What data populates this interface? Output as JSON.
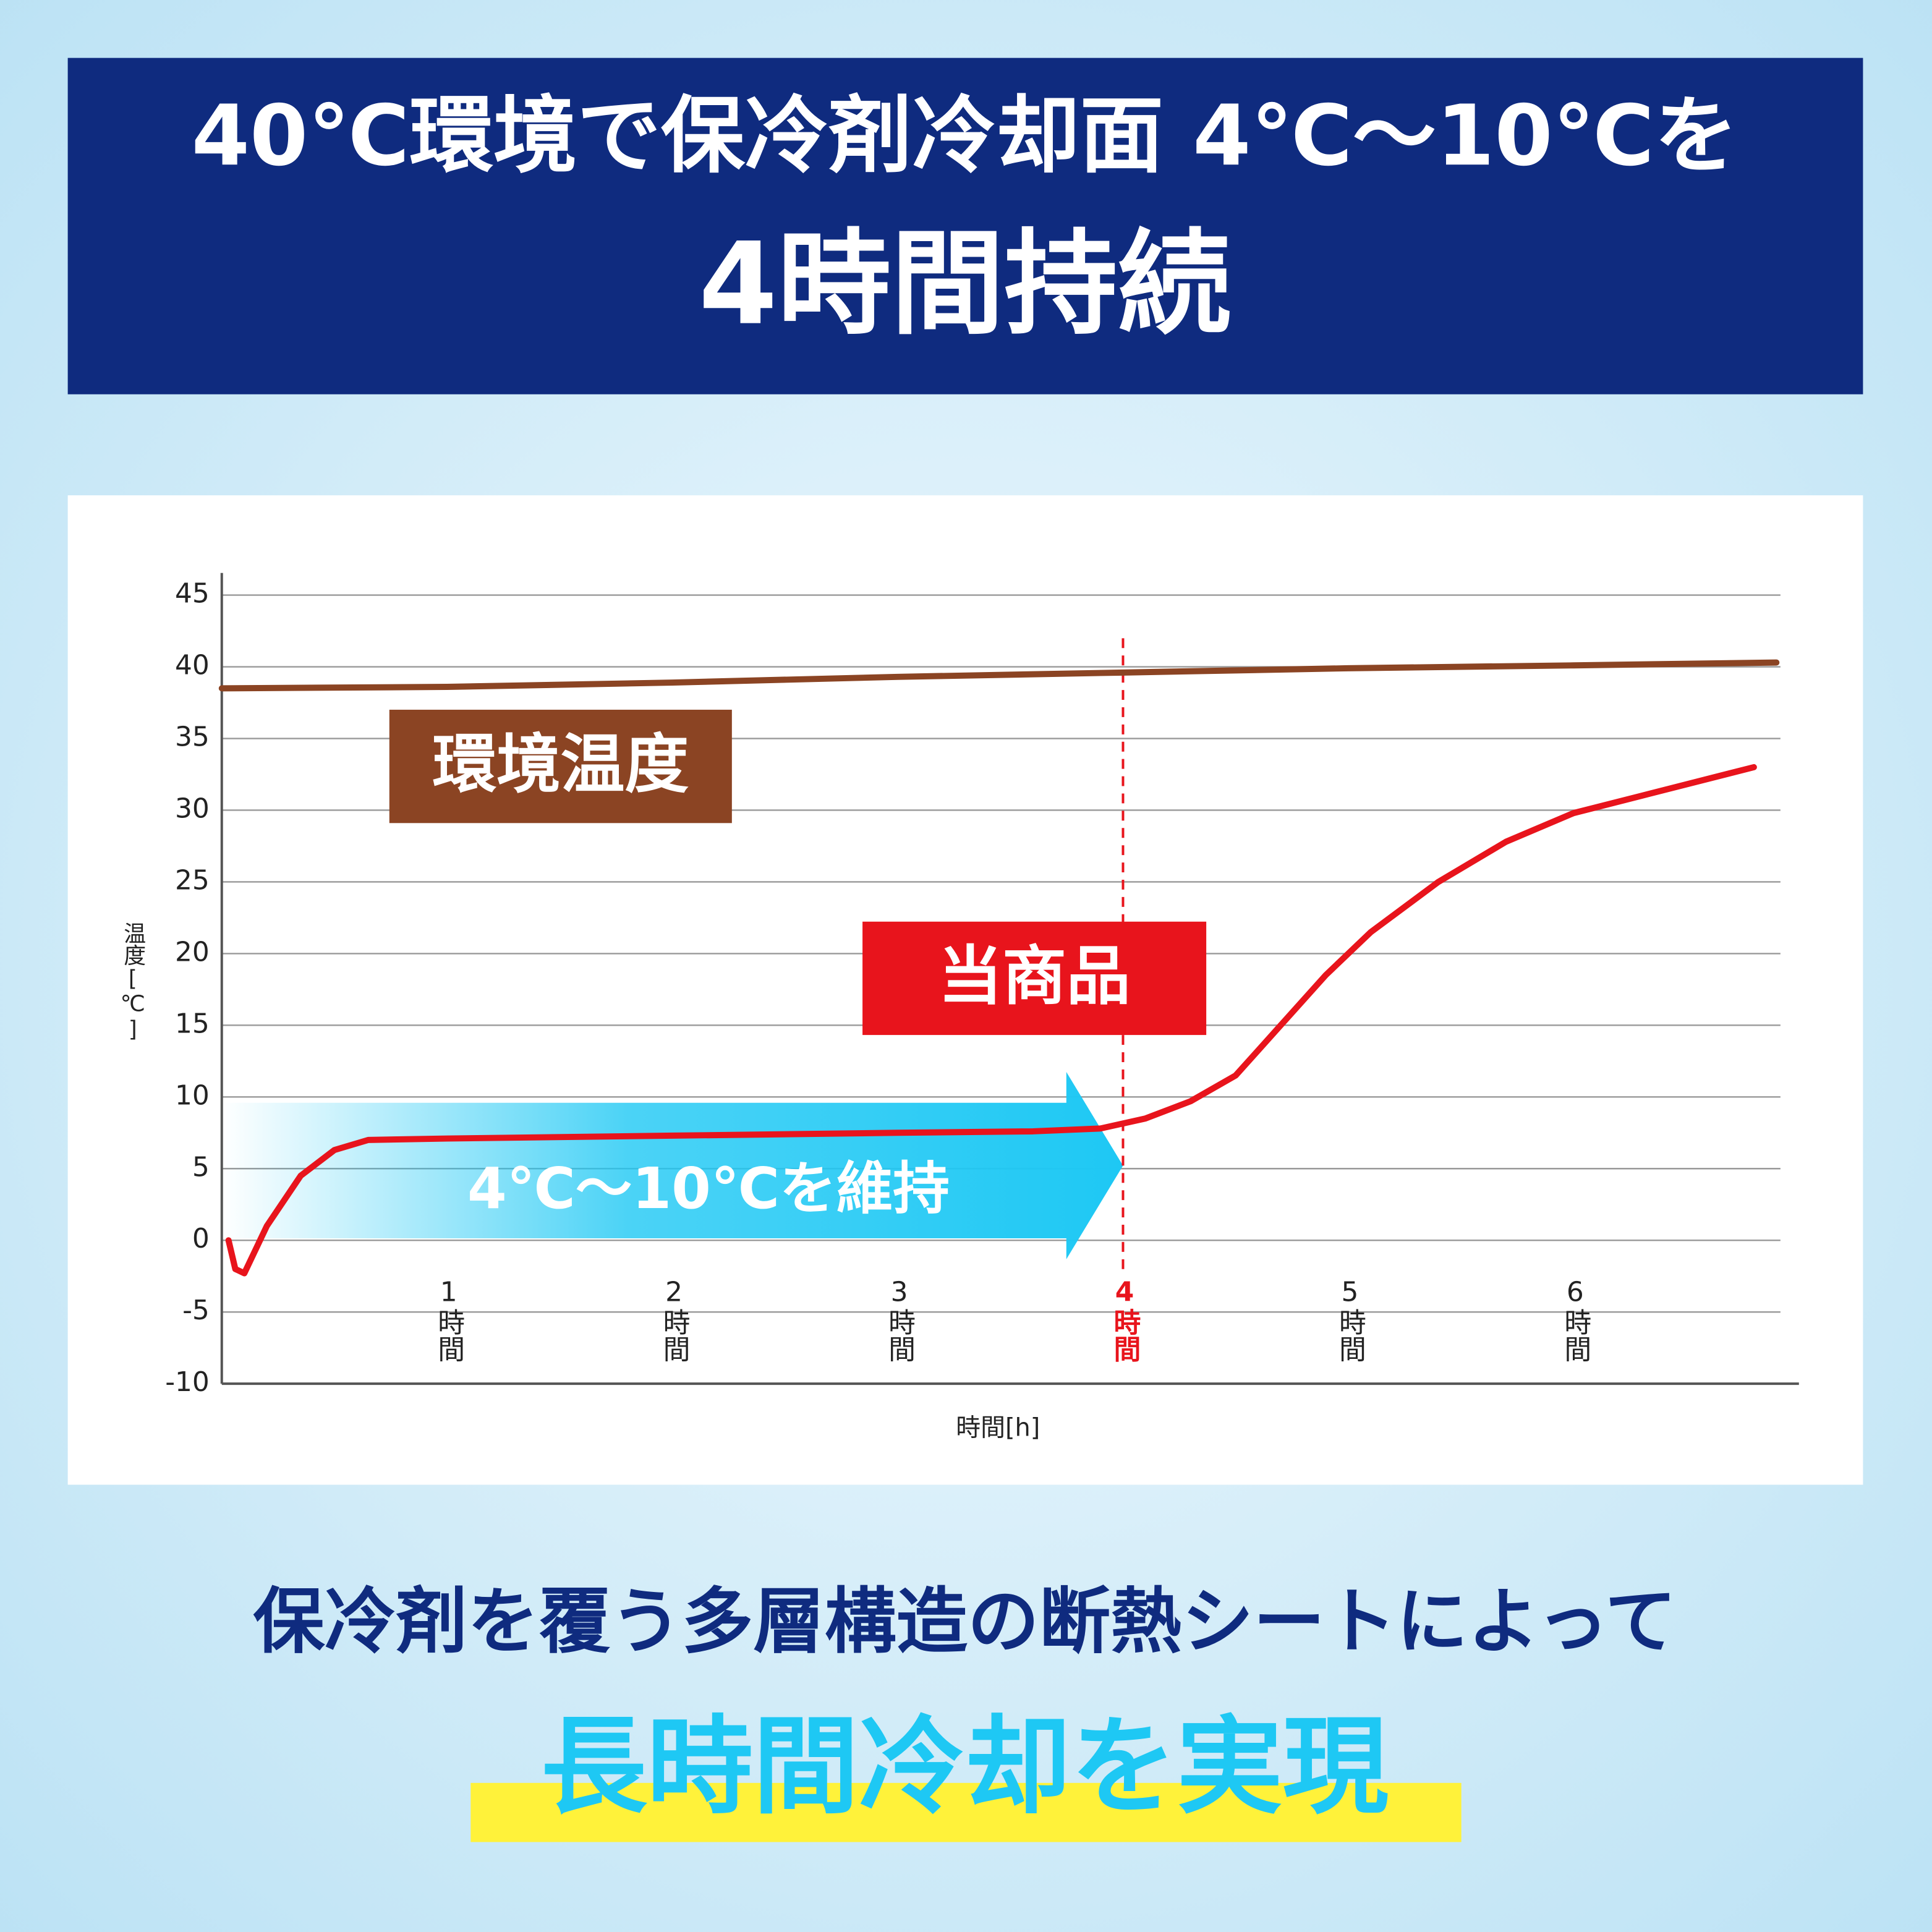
{
  "header": {
    "line1": "40℃環境で保冷剤冷却面 4℃～10℃を",
    "line2": "4時間持続"
  },
  "chart_data": {
    "type": "line",
    "y_label": "温度[℃]",
    "x_label": "時間[h]",
    "xlim": [
      0,
      7
    ],
    "ylim": [
      -10,
      45
    ],
    "yticks": [
      -10,
      -5,
      0,
      5,
      10,
      15,
      20,
      25,
      30,
      35,
      40,
      45
    ],
    "xticks": [
      {
        "value": 1,
        "label": "1時間"
      },
      {
        "value": 2,
        "label": "2時間"
      },
      {
        "value": 3,
        "label": "3時間"
      },
      {
        "value": 4,
        "label": "4時間"
      },
      {
        "value": 5,
        "label": "5時間"
      },
      {
        "value": 6,
        "label": "6時間"
      }
    ],
    "grid": true,
    "highlight_x": 4,
    "highlight_color": "#e8141c",
    "series": [
      {
        "name": "環境温度",
        "color": "#8b4423",
        "x": [
          0,
          1,
          2,
          3,
          4,
          5,
          6,
          6.9
        ],
        "values": [
          38.5,
          38.6,
          38.9,
          39.3,
          39.6,
          39.9,
          40.1,
          40.3
        ]
      },
      {
        "name": "当商品",
        "color": "#e8141c",
        "x": [
          0.03,
          0.06,
          0.1,
          0.2,
          0.35,
          0.5,
          0.65,
          1,
          2,
          3,
          3.6,
          3.9,
          4.1,
          4.3,
          4.5,
          4.7,
          4.9,
          5.1,
          5.4,
          5.7,
          6,
          6.3,
          6.8
        ],
        "values": [
          0,
          -2,
          -2.3,
          1,
          4.5,
          6.3,
          7,
          7.1,
          7.3,
          7.5,
          7.6,
          7.8,
          8.5,
          9.7,
          11.5,
          15,
          18.5,
          21.5,
          25,
          27.8,
          29.8,
          31,
          33
        ]
      }
    ],
    "annotation": "4℃～10℃を維持"
  },
  "footer": {
    "line1": "保冷剤を覆う多層構造の断熱シートによって",
    "line2": "長時間冷却を実現"
  }
}
